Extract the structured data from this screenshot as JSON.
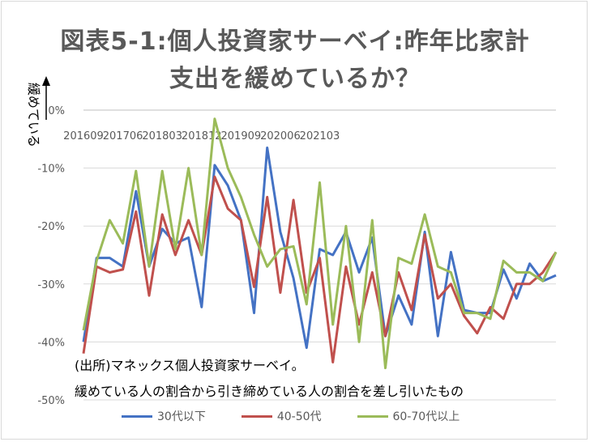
{
  "chart_data": {
    "type": "line",
    "title_line1": "図表5-1:個人投資家サーベイ:昨年比家計",
    "title_line2": "支出を緩めているか？",
    "ylabel": "緩めている",
    "ylim": [
      -50,
      0
    ],
    "y_ticks": [
      "0%",
      "-10%",
      "-20%",
      "-30%",
      "-40%",
      "-50%"
    ],
    "x_tick_labels": [
      "201609",
      "201706",
      "201803",
      "201812",
      "201909",
      "202006",
      "202103"
    ],
    "x_tick_indices": [
      0,
      3,
      6,
      9,
      12,
      15,
      18
    ],
    "series": [
      {
        "name": "30代以下",
        "color": "#4472c4",
        "values": [
          -40,
          -25.5,
          -25.5,
          -27,
          -14,
          -27,
          -20.5,
          -23,
          -22,
          -34,
          -9.5,
          -13,
          -19,
          -35,
          -6.5,
          -21,
          -29,
          -41,
          -24,
          -25,
          -21,
          -28,
          -22,
          -39,
          -32,
          -37,
          -21,
          -39,
          -24.5,
          -34.5,
          -35,
          -35,
          -27.5,
          -32.5,
          -26.5,
          -29.5,
          -28.5
        ]
      },
      {
        "name": "40-50代",
        "color": "#c0504d",
        "values": [
          -42,
          -27,
          -28,
          -27.5,
          -17.5,
          -32,
          -18,
          -25,
          -19,
          -25,
          -11.5,
          -17,
          -19,
          -30.5,
          -15,
          -31.5,
          -15.5,
          -31.5,
          -25.5,
          -43.5,
          -27,
          -37,
          -28,
          -39,
          -28,
          -34.5,
          -21.5,
          -32.5,
          -30,
          -35.5,
          -38.5,
          -34,
          -36,
          -30,
          -30,
          -28,
          -24.5
        ]
      },
      {
        "name": "60-70代以上",
        "color": "#9bbb59",
        "values": [
          -38,
          -26,
          -19,
          -23,
          -10.5,
          -27,
          -10.5,
          -24,
          -10,
          -25,
          -1.5,
          -10,
          -15,
          -21.5,
          -27,
          -24,
          -23.5,
          -33.5,
          -12.5,
          -37,
          -20,
          -40,
          -19,
          -44.5,
          -25.5,
          -26.5,
          -18,
          -27,
          -28,
          -35,
          -35,
          -36,
          -26,
          -28,
          -28,
          -29.5,
          -24.5
        ]
      }
    ]
  },
  "notes": {
    "source": "(出所)マネックス個人投資家サーベイ。",
    "method": "緩めている人の割合から引き締めている人の割合を差し引いたもの"
  }
}
